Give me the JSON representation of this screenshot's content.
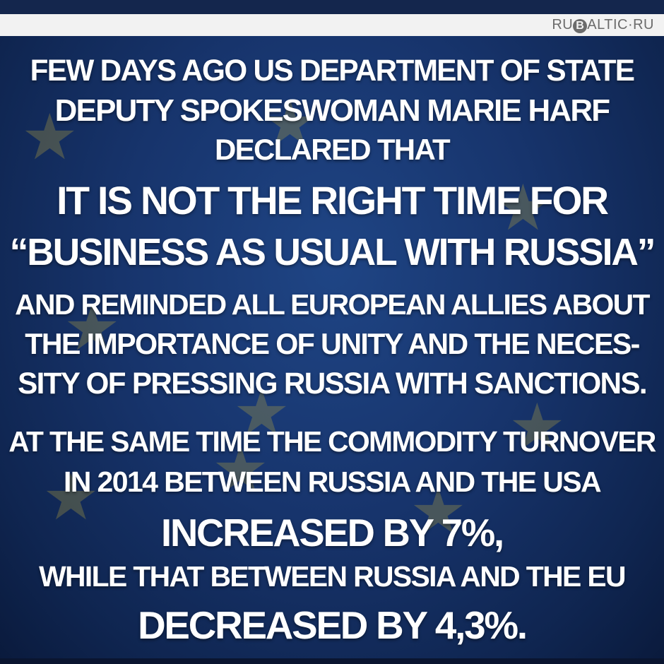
{
  "logo": {
    "text_before": "RU",
    "circle_letter": "B",
    "text_after": "ALTIC·RU"
  },
  "colors": {
    "background": "#17346c",
    "text": "#ffffff",
    "stars": "#c9b23a",
    "logo_bar": "#f2f2f2"
  },
  "lines": [
    "FEW DAYS AGO US DEPARTMENT OF STATE",
    "DEPUTY SPOKESWOMAN MARIE HARF",
    "DECLARED THAT",
    "IT IS NOT THE RIGHT TIME FOR",
    "“BUSINESS AS USUAL WITH RUSSIA”",
    "AND REMINDED ALL EUROPEAN ALLIES ABOUT",
    "THE IMPORTANCE OF UNITY AND THE NECES-",
    "SITY OF PRESSING RUSSIA WITH SANCTIONS.",
    "AT THE SAME TIME THE COMMODITY TURNOVER",
    "IN 2014 BETWEEN RUSSIA AND THE USA",
    "INCREASED BY 7%,",
    "WHILE THAT BETWEEN RUSSIA AND THE EU",
    "DECREASED BY 4,3%."
  ]
}
